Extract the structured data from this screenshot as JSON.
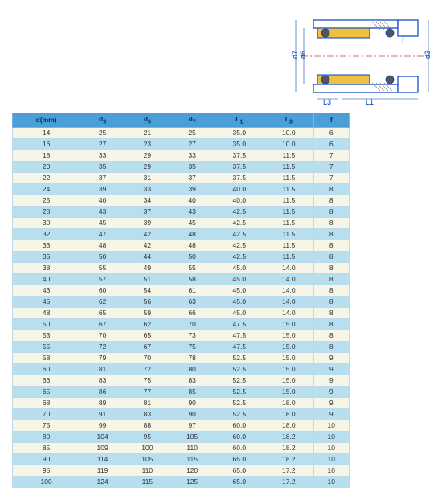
{
  "diagram": {
    "labels": [
      "d7",
      "d6",
      "d3",
      "f",
      "L3",
      "L1"
    ],
    "colors": {
      "body": "#f0c040",
      "spring": "#888888",
      "outline": "#0040c0",
      "centerline": "#c04040"
    }
  },
  "table": {
    "columns": [
      "d(mm)",
      "d3",
      "d6",
      "d7",
      "L1",
      "L3",
      "f"
    ],
    "header_bg": "#4a9fd8",
    "row_odd_bg": "#f5f5e8",
    "row_even_bg": "#b8dff0",
    "rows": [
      [
        14,
        25,
        21,
        25,
        "35.0",
        "10.0",
        6
      ],
      [
        16,
        27,
        23,
        27,
        "35.0",
        "10.0",
        6
      ],
      [
        18,
        33,
        29,
        33,
        "37.5",
        "11.5",
        7
      ],
      [
        20,
        35,
        29,
        35,
        "37.5",
        "11.5",
        7
      ],
      [
        22,
        37,
        31,
        37,
        "37.5",
        "11.5",
        7
      ],
      [
        24,
        39,
        33,
        39,
        "40.0",
        "11.5",
        8
      ],
      [
        25,
        40,
        34,
        40,
        "40.0",
        "11.5",
        8
      ],
      [
        28,
        43,
        37,
        43,
        "42.5",
        "11.5",
        8
      ],
      [
        30,
        45,
        39,
        45,
        "42.5",
        "11.5",
        8
      ],
      [
        32,
        47,
        42,
        48,
        "42.5",
        "11.5",
        8
      ],
      [
        33,
        48,
        42,
        48,
        "42.5",
        "11.5",
        8
      ],
      [
        35,
        50,
        44,
        50,
        "42.5",
        "11.5",
        8
      ],
      [
        38,
        55,
        49,
        55,
        "45.0",
        "14.0",
        8
      ],
      [
        40,
        57,
        51,
        58,
        "45.0",
        "14.0",
        8
      ],
      [
        43,
        60,
        54,
        61,
        "45.0",
        "14.0",
        8
      ],
      [
        45,
        62,
        56,
        63,
        "45.0",
        "14.0",
        8
      ],
      [
        48,
        65,
        59,
        66,
        "45.0",
        "14.0",
        8
      ],
      [
        50,
        67,
        62,
        70,
        "47.5",
        "15.0",
        8
      ],
      [
        53,
        70,
        65,
        73,
        "47.5",
        "15.0",
        8
      ],
      [
        55,
        72,
        67,
        75,
        "47.5",
        "15.0",
        8
      ],
      [
        58,
        79,
        70,
        78,
        "52.5",
        "15.0",
        9
      ],
      [
        60,
        81,
        72,
        80,
        "52.5",
        "15.0",
        9
      ],
      [
        63,
        83,
        75,
        83,
        "52.5",
        "15.0",
        9
      ],
      [
        65,
        86,
        77,
        85,
        "52.5",
        "15.0",
        9
      ],
      [
        68,
        89,
        81,
        90,
        "52.5",
        "18.0",
        9
      ],
      [
        70,
        91,
        83,
        90,
        "52.5",
        "18.0",
        9
      ],
      [
        75,
        99,
        88,
        97,
        "60.0",
        "18.0",
        10
      ],
      [
        80,
        104,
        95,
        105,
        "60.0",
        "18.2",
        10
      ],
      [
        85,
        109,
        100,
        110,
        "60.0",
        "18.2",
        10
      ],
      [
        90,
        114,
        105,
        115,
        "65.0",
        "18.2",
        10
      ],
      [
        95,
        119,
        110,
        120,
        "65.0",
        "17.2",
        10
      ],
      [
        100,
        124,
        115,
        125,
        "65.0",
        "17.2",
        10
      ]
    ]
  }
}
